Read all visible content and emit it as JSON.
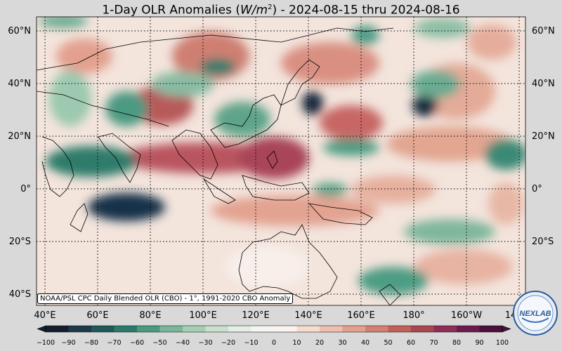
{
  "title": {
    "prefix": "1-Day OLR Anomalies (",
    "unit_base": "W/m",
    "unit_exp": "2",
    "suffix": ") - 2024-08-15 thru 2024-08-16"
  },
  "lat_labels": [
    "60°N",
    "40°N",
    "20°N",
    "0°",
    "20°S",
    "40°S"
  ],
  "lon_labels": [
    "40°E",
    "60°E",
    "80°E",
    "100°E",
    "120°E",
    "140°E",
    "160°E",
    "180°",
    "160°W",
    "14"
  ],
  "credit": "NOAA/PSL CPC Daily Blended OLR (CBO) - 1°, 1991-2020 CBO Anomaly",
  "logo_text": "NEXLAB",
  "colorbar": {
    "labels": [
      "−100",
      "−90",
      "−80",
      "−70",
      "−60",
      "−50",
      "−40",
      "−30",
      "−20",
      "−10",
      "0",
      "10",
      "20",
      "30",
      "40",
      "50",
      "60",
      "70",
      "80",
      "90",
      "100"
    ],
    "colors": [
      "#141e2c",
      "#1c3a48",
      "#1f5a58",
      "#2a7a6a",
      "#4a9a80",
      "#7ab79a",
      "#a5cfb4",
      "#c8e0cc",
      "#e3eee4",
      "#f4f6f2",
      "#fbf3ee",
      "#f6dccf",
      "#eebfae",
      "#e3a08e",
      "#d48070",
      "#c06058",
      "#a84652",
      "#8c2e55",
      "#6c1c4c",
      "#4a0f3a"
    ]
  }
}
